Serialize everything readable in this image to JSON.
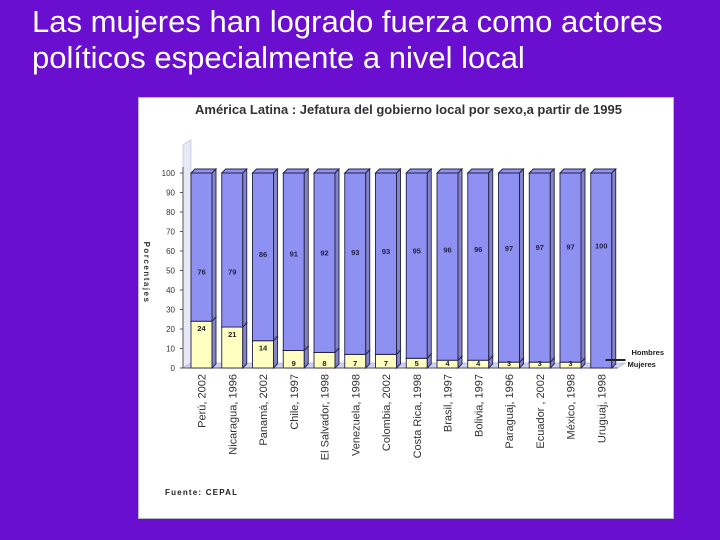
{
  "slide": {
    "title": "Las mujeres han logrado fuerza como actores políticos especialmente a nivel local"
  },
  "colors": {
    "background": "#6a0fcf",
    "hombres_bar": "#8f91f2",
    "mujeres_bar": "#ffffc2",
    "plot_floor": "#cfd2ee"
  },
  "chart_data": {
    "type": "bar",
    "stacked": true,
    "title": "América Latina : Jefatura del gobierno local por sexo,a partir de 1995",
    "ylabel": "Porcentajes",
    "xlabel": "",
    "ylim": [
      0,
      100
    ],
    "yticks": [
      0,
      10,
      20,
      30,
      40,
      50,
      60,
      70,
      80,
      90,
      100
    ],
    "grid": false,
    "legend": "right",
    "source": "Fuente: CEPAL",
    "categories": [
      "Perú, 2002",
      "Nicaragua, 1996",
      "Panamá, 2002",
      "Chile, 1997",
      "El Salvador, 1998",
      "Venezuela, 1998",
      "Colombia, 2002",
      "Costa Rica, 1998",
      "Brasil, 1997",
      "Bolivia, 1997",
      "Paraguaj, 1996",
      "Ecuador , 2002",
      "México, 1998",
      "Uruguaj, 1998"
    ],
    "series": [
      {
        "name": "Mujeres",
        "values": [
          24,
          21,
          14,
          9,
          8,
          7,
          7,
          5,
          4,
          4,
          3,
          3,
          3,
          0
        ]
      },
      {
        "name": "Hombres",
        "values": [
          76,
          79,
          86,
          91,
          92,
          93,
          93,
          95,
          96,
          96,
          97,
          97,
          97,
          100
        ]
      }
    ]
  }
}
